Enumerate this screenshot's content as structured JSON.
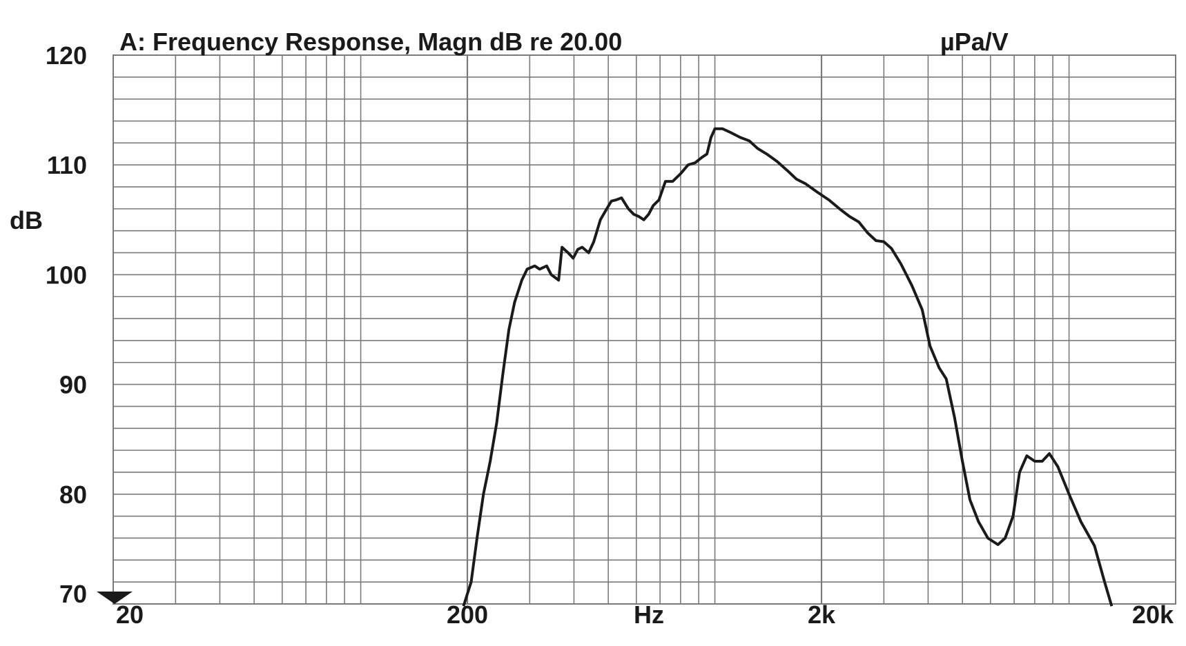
{
  "chart_data": {
    "type": "line",
    "title": "A: Frequency Response, Magn dB re 20.00",
    "title_unit": "µPa/V",
    "xlabel": "Hz",
    "ylabel": "dB",
    "x_scale": "log",
    "xlim": [
      20,
      20000
    ],
    "ylim": [
      70,
      120
    ],
    "grid": true,
    "yticks": [
      {
        "value": 120,
        "label": "120"
      },
      {
        "value": 110,
        "label": "110"
      },
      {
        "value": 100,
        "label": "100"
      },
      {
        "value": 90,
        "label": "90"
      },
      {
        "value": 80,
        "label": "80"
      },
      {
        "value": 70,
        "label": "70"
      }
    ],
    "xticks": [
      {
        "value": 20,
        "label": "20"
      },
      {
        "value": 200,
        "label": "200"
      },
      {
        "value": 2000,
        "label": "2k"
      },
      {
        "value": 20000,
        "label": "20k"
      }
    ],
    "line_color": "#1a1a1a",
    "grid_color": "#7a7a7a",
    "series": [
      {
        "values": [
          [
            195,
            69.8
          ],
          [
            205,
            72
          ],
          [
            213,
            76
          ],
          [
            222,
            80
          ],
          [
            232,
            83
          ],
          [
            242,
            86.5
          ],
          [
            252,
            91
          ],
          [
            262,
            95
          ],
          [
            272,
            97.5
          ],
          [
            285,
            99.5
          ],
          [
            295,
            100.5
          ],
          [
            310,
            100.8
          ],
          [
            320,
            100.5
          ],
          [
            335,
            100.8
          ],
          [
            345,
            100
          ],
          [
            362,
            99.5
          ],
          [
            370,
            102.5
          ],
          [
            385,
            102
          ],
          [
            398,
            101.5
          ],
          [
            410,
            102.3
          ],
          [
            422,
            102.5
          ],
          [
            440,
            102
          ],
          [
            455,
            103
          ],
          [
            475,
            105
          ],
          [
            495,
            106
          ],
          [
            510,
            106.7
          ],
          [
            525,
            106.8
          ],
          [
            545,
            107
          ],
          [
            570,
            106
          ],
          [
            590,
            105.5
          ],
          [
            610,
            105.3
          ],
          [
            630,
            105
          ],
          [
            650,
            105.5
          ],
          [
            670,
            106.3
          ],
          [
            695,
            106.8
          ],
          [
            725,
            108.5
          ],
          [
            760,
            108.5
          ],
          [
            800,
            109.2
          ],
          [
            840,
            110
          ],
          [
            880,
            110.2
          ],
          [
            920,
            110.7
          ],
          [
            950,
            111
          ],
          [
            975,
            112.5
          ],
          [
            1000,
            113.3
          ],
          [
            1050,
            113.3
          ],
          [
            1100,
            113
          ],
          [
            1180,
            112.5
          ],
          [
            1250,
            112.2
          ],
          [
            1320,
            111.5
          ],
          [
            1400,
            111
          ],
          [
            1500,
            110.3
          ],
          [
            1600,
            109.5
          ],
          [
            1700,
            108.7
          ],
          [
            1800,
            108.3
          ],
          [
            1950,
            107.5
          ],
          [
            2100,
            106.8
          ],
          [
            2250,
            106
          ],
          [
            2400,
            105.3
          ],
          [
            2550,
            104.8
          ],
          [
            2700,
            103.8
          ],
          [
            2850,
            103.1
          ],
          [
            3000,
            103
          ],
          [
            3150,
            102.4
          ],
          [
            3350,
            101
          ],
          [
            3600,
            99
          ],
          [
            3850,
            96.8
          ],
          [
            4050,
            93.5
          ],
          [
            4300,
            91.5
          ],
          [
            4500,
            90.5
          ],
          [
            4750,
            87
          ],
          [
            5000,
            83
          ],
          [
            5250,
            79.5
          ],
          [
            5550,
            77.5
          ],
          [
            5900,
            76
          ],
          [
            6300,
            75.4
          ],
          [
            6600,
            76
          ],
          [
            6950,
            78
          ],
          [
            7250,
            82
          ],
          [
            7600,
            83.5
          ],
          [
            8000,
            83
          ],
          [
            8400,
            83
          ],
          [
            8800,
            83.7
          ],
          [
            9300,
            82.5
          ],
          [
            10000,
            80
          ],
          [
            10800,
            77.5
          ],
          [
            11800,
            75.3
          ],
          [
            12600,
            72
          ],
          [
            13200,
            69.8
          ]
        ]
      }
    ]
  }
}
